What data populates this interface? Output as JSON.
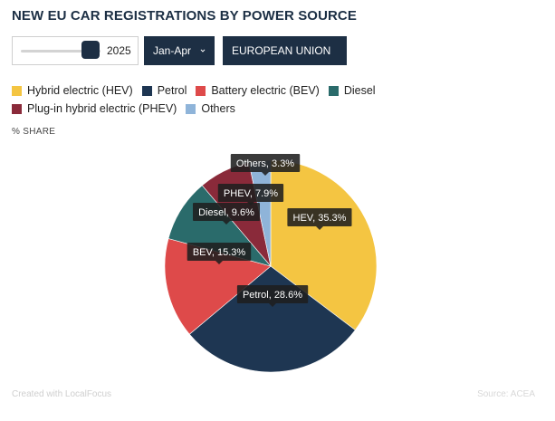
{
  "title": "NEW EU CAR REGISTRATIONS BY POWER SOURCE",
  "controls": {
    "year": "2025",
    "period": "Jan-Apr",
    "region": "EUROPEAN UNION"
  },
  "share_label": "% SHARE",
  "footer": {
    "left": "Created with LocalFocus",
    "right": "Source: ACEA"
  },
  "chart_data": {
    "type": "pie",
    "unit": "%",
    "slices": [
      {
        "legend": "Hybrid electric (HEV)",
        "label": "HEV, 35.3%",
        "value": 35.3,
        "color": "#f4c542"
      },
      {
        "legend": "Petrol",
        "label": "Petrol, 28.6%",
        "value": 28.6,
        "color": "#1e3652"
      },
      {
        "legend": "Battery electric (BEV)",
        "label": "BEV, 15.3%",
        "value": 15.3,
        "color": "#de4a4a"
      },
      {
        "legend": "Diesel",
        "label": "Diesel, 9.6%",
        "value": 9.6,
        "color": "#2a6b6b"
      },
      {
        "legend": "Plug-in hybrid electric (PHEV)",
        "label": "PHEV, 7.9%",
        "value": 7.9,
        "color": "#8a2a3a"
      },
      {
        "legend": "Others",
        "label": "Others, 3.3%",
        "value": 3.3,
        "color": "#8fb4d9"
      }
    ]
  }
}
